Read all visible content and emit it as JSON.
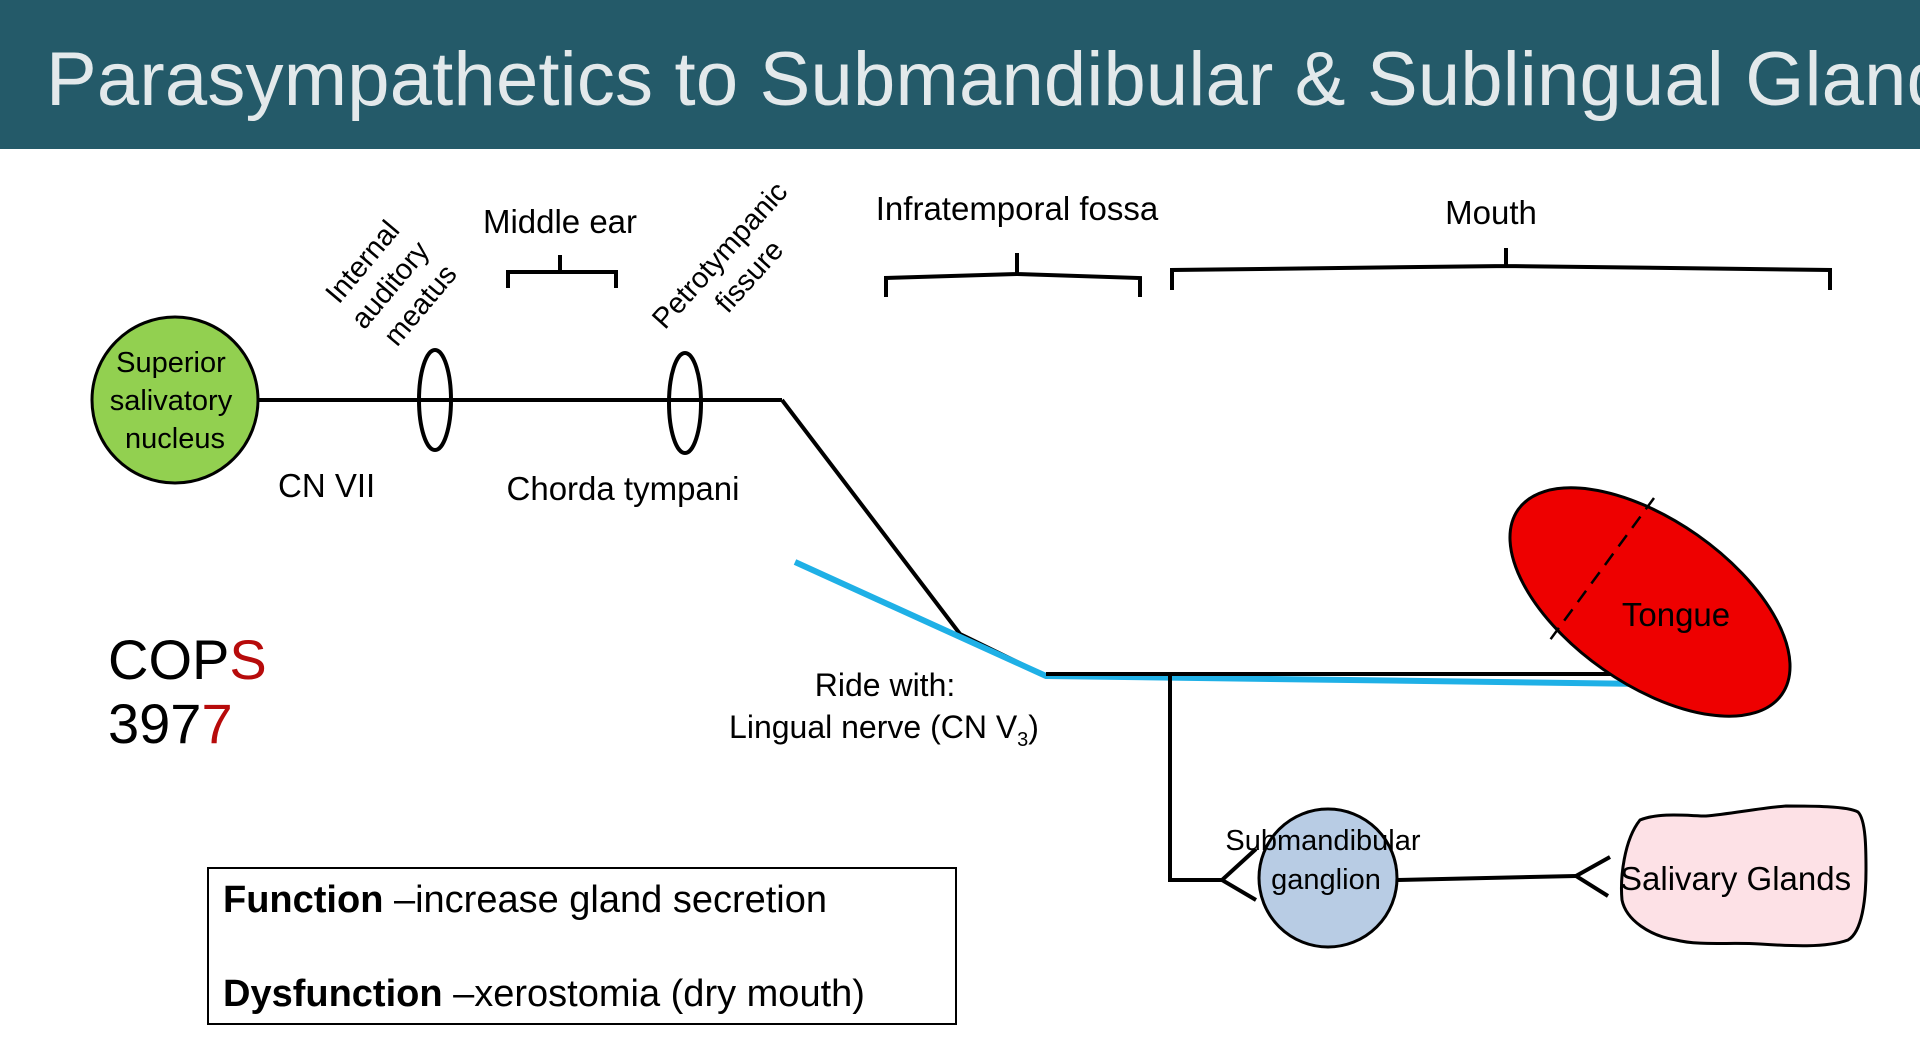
{
  "slide": {
    "title": "Parasympathetics to Submandibular & Sublingual Glands"
  },
  "labels": {
    "nucleus_line1": "Superior",
    "nucleus_line2": "salivatory",
    "nucleus_line3": "nucleus",
    "cn7": "CN VII",
    "iam_line1": "Internal",
    "iam_line2": "auditory",
    "iam_line3": "meatus",
    "middle_ear": "Middle ear",
    "petro_line1": "Petrotympanic",
    "petro_line2": "fissure",
    "chorda": "Chorda tympani",
    "infratemporal": "Infratemporal fossa",
    "mouth": "Mouth",
    "tongue": "Tongue",
    "ride_line1": "Ride with:",
    "ride_line2_pre": "Lingual nerve (CN V",
    "ride_sub": "3",
    "ride_line2_post": ")",
    "ganglion_line1": "Submandibular",
    "ganglion_line2": "ganglion",
    "salivary": "Salivary Glands"
  },
  "mnemonic": {
    "letters_black": "COP",
    "letter_red": "S",
    "digits_black": "397",
    "digit_red": "7"
  },
  "function_box": {
    "function_label": "Function",
    "function_text": " –increase gland secretion",
    "dysfunction_label": "Dysfunction",
    "dysfunction_text": " –xerostomia (dry mouth)"
  },
  "colors": {
    "title_bar": "#245a69",
    "nucleus_fill": "#92d050",
    "lingual_nerve": "#1fb0e6",
    "tongue_fill": "#ee0000",
    "ganglion_fill": "#b8cce4",
    "salivary_fill": "#fde1e6",
    "accent_red": "#b70b0b"
  }
}
